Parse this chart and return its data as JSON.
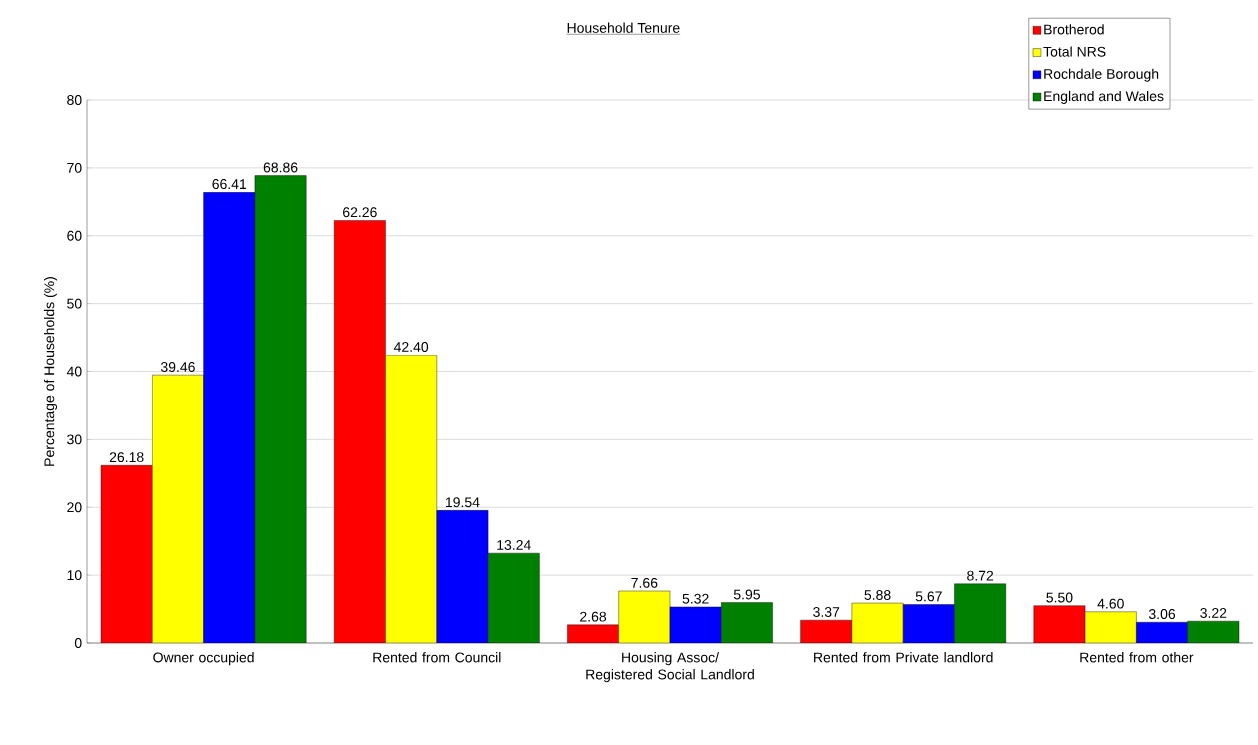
{
  "chart_data": {
    "type": "bar",
    "title": "Household Tenure",
    "ylabel": "Percentage of Households (%)",
    "categories": [
      "Owner occupied",
      "Rented from Council",
      "Housing Assoc/ Registered Social Landlord",
      "Rented from Private landlord",
      "Rented from other"
    ],
    "series": [
      {
        "name": "Brotherod",
        "color": "#ff0000",
        "values": [
          26.18,
          62.26,
          2.68,
          3.37,
          5.5
        ],
        "value_labels": [
          "26.18",
          "62.26",
          "2.68",
          "3.37",
          "5.50"
        ]
      },
      {
        "name": "Total NRS",
        "color": "#ffff00",
        "values": [
          39.46,
          42.4,
          7.66,
          5.88,
          4.6
        ],
        "value_labels": [
          "39.46",
          "42.40",
          "7.66",
          "5.88",
          "4.60"
        ]
      },
      {
        "name": "Rochdale Borough",
        "color": "#0000ff",
        "values": [
          66.41,
          19.54,
          5.32,
          5.67,
          3.06
        ],
        "value_labels": [
          "66.41",
          "19.54",
          "5.32",
          "5.67",
          "3.06"
        ]
      },
      {
        "name": "England and Wales",
        "color": "#008000",
        "values": [
          68.86,
          13.24,
          5.95,
          8.72,
          3.22
        ],
        "value_labels": [
          "68.86",
          "13.24",
          "5.95",
          "8.72",
          "3.22"
        ]
      }
    ],
    "ylim": [
      0,
      80
    ],
    "yticks": [
      0,
      10,
      20,
      30,
      40,
      50,
      60,
      70,
      80
    ],
    "grid": "y",
    "legend": "top right"
  }
}
